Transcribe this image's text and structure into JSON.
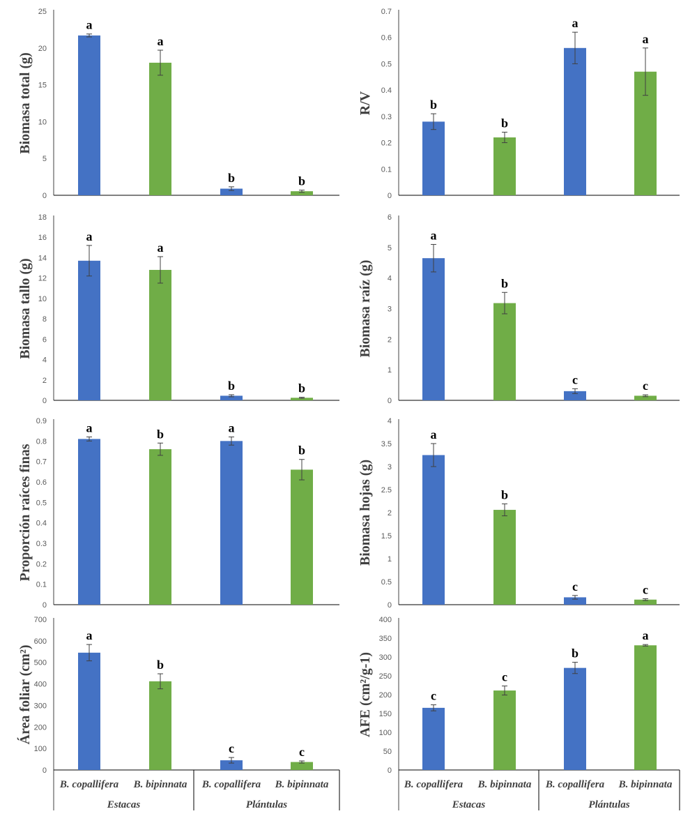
{
  "colors": {
    "blue": "#4472C4",
    "green": "#70AD47",
    "error": "#404040"
  },
  "categories": {
    "species": [
      "B. copallifera",
      "B. bipinnata",
      "B. copallifera",
      "B. bipinnata"
    ],
    "groups": [
      "Estacas",
      "Plántulas"
    ]
  },
  "chart_data": [
    {
      "type": "bar",
      "ylabel": "Biomasa total (g)",
      "ylim": [
        0,
        25
      ],
      "ticks": [
        "0",
        "5",
        "10",
        "15",
        "20",
        "25"
      ],
      "values": [
        21.7,
        18.0,
        0.9,
        0.55
      ],
      "errors": [
        0.2,
        1.7,
        0.25,
        0.15
      ],
      "letters": [
        "a",
        "a",
        "b",
        "b"
      ]
    },
    {
      "type": "bar",
      "ylabel": "R/V",
      "ylim": [
        0,
        0.7
      ],
      "ticks": [
        "0",
        "0.1",
        "0.2",
        "0.3",
        "0.4",
        "0.5",
        "0.6",
        "0.7"
      ],
      "values": [
        0.28,
        0.22,
        0.56,
        0.47
      ],
      "errors": [
        0.03,
        0.02,
        0.06,
        0.09
      ],
      "letters": [
        "b",
        "b",
        "a",
        "a"
      ]
    },
    {
      "type": "bar",
      "ylabel": "Biomasa tallo (g)",
      "ylim": [
        0,
        18
      ],
      "ticks": [
        "0",
        "2",
        "4",
        "6",
        "8",
        "10",
        "12",
        "14",
        "16",
        "18"
      ],
      "values": [
        13.7,
        12.8,
        0.45,
        0.25
      ],
      "errors": [
        1.5,
        1.3,
        0.1,
        0.05
      ],
      "letters": [
        "a",
        "a",
        "b",
        "b"
      ]
    },
    {
      "type": "bar",
      "ylabel": "Biomasa raíz (g)",
      "ylim": [
        0,
        6
      ],
      "ticks": [
        "0",
        "1",
        "2",
        "3",
        "4",
        "5",
        "6"
      ],
      "values": [
        4.65,
        3.18,
        0.3,
        0.15
      ],
      "errors": [
        0.45,
        0.35,
        0.08,
        0.03
      ],
      "letters": [
        "a",
        "b",
        "c",
        "c"
      ]
    },
    {
      "type": "bar",
      "ylabel": "Proporción raíces finas",
      "ylim": [
        0,
        0.9
      ],
      "ticks": [
        "0",
        "0.1",
        "0.2",
        "0.3",
        "0.4",
        "0.5",
        "0.6",
        "0.7",
        "0.8",
        "0.9"
      ],
      "values": [
        0.81,
        0.76,
        0.8,
        0.66
      ],
      "errors": [
        0.01,
        0.03,
        0.02,
        0.05
      ],
      "letters": [
        "a",
        "b",
        "a",
        "b"
      ]
    },
    {
      "type": "bar",
      "ylabel": "Biomasa hojas (g)",
      "ylim": [
        0,
        4
      ],
      "ticks": [
        "0",
        "0.5",
        "1",
        "1.5",
        "2",
        "2.5",
        "3",
        "3.5",
        "4"
      ],
      "values": [
        3.25,
        2.06,
        0.16,
        0.11
      ],
      "errors": [
        0.25,
        0.13,
        0.04,
        0.02
      ],
      "letters": [
        "a",
        "b",
        "c",
        "c"
      ]
    },
    {
      "type": "bar",
      "ylabel": "Área foliar (cm²)",
      "ylim": [
        0,
        700
      ],
      "ticks": [
        "0",
        "100",
        "200",
        "300",
        "400",
        "500",
        "600",
        "700"
      ],
      "values": [
        545,
        412,
        45,
        37
      ],
      "errors": [
        38,
        35,
        13,
        5
      ],
      "letters": [
        "a",
        "b",
        "c",
        "c"
      ]
    },
    {
      "type": "bar",
      "ylabel": "AFE (cm²/g-1)",
      "ylim": [
        0,
        400
      ],
      "ticks": [
        "0",
        "50",
        "100",
        "150",
        "200",
        "250",
        "300",
        "350",
        "400"
      ],
      "values": [
        165,
        211,
        271,
        331
      ],
      "errors": [
        8,
        12,
        15,
        2
      ],
      "letters": [
        "c",
        "c",
        "b",
        "a"
      ]
    }
  ]
}
